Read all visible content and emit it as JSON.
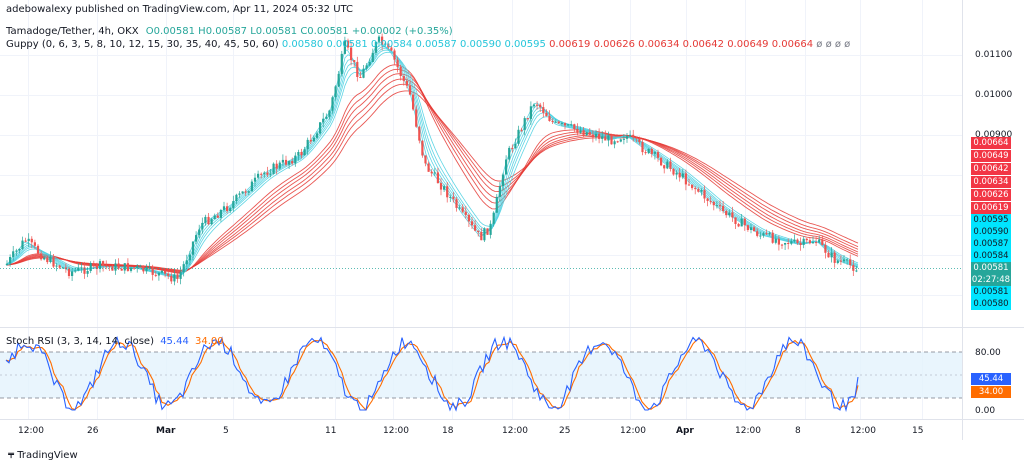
{
  "publisher_line": "adebowalexy published on TradingView.com, Apr 11, 2024 05:32 UTC",
  "legend": {
    "symbol": "Tamadoge/Tether, 4h, OKX",
    "ohlc": "O0.00581 H0.00587 L0.00581 C0.00581 +0.00002 (+0.35%)",
    "guppy_title": "Guppy (0, 6, 3, 5, 8, 10, 12, 15, 30, 35, 40, 45, 50, 60)",
    "guppy_cyan": [
      "0.00580",
      "0.00581",
      "0.00584",
      "0.00587",
      "0.00590",
      "0.00595"
    ],
    "guppy_red": [
      "0.00619",
      "0.00626",
      "0.00634",
      "0.00642",
      "0.00649",
      "0.00664"
    ],
    "guppy_empty": "ø ø ø ø",
    "stoch_title": "Stoch RSI (3, 3, 14, 14, close)",
    "stoch_k": "45.44",
    "stoch_d": "34.00"
  },
  "colors": {
    "up": "#26a69a",
    "down": "#ef5350",
    "guppy_red": "#e53935",
    "guppy_cyan": "#4dd0e1",
    "stoch_k": "#2962ff",
    "stoch_d": "#ff6d00",
    "band": "#e3f2fd",
    "current": "#26a69a"
  },
  "price_axis": {
    "ticks": [
      "0.01100",
      "0.01000",
      "0.00900"
    ],
    "red_labels": [
      "0.00664",
      "0.00649",
      "0.00642",
      "0.00634",
      "0.00626",
      "0.00619"
    ],
    "cyan_labels": [
      "0.00595",
      "0.00590",
      "0.00587",
      "0.00584"
    ],
    "current_price": "0.00581",
    "countdown": "02:27:48",
    "cyan_bottom_labels": [
      "0.00581",
      "0.00580"
    ]
  },
  "stoch_axis": {
    "ticks": [
      "80.00",
      "0.00"
    ]
  },
  "time_axis": [
    "12:00",
    "26",
    "Mar",
    "5",
    "11",
    "12:00",
    "18",
    "12:00",
    "25",
    "12:00",
    "Apr",
    "12:00",
    "8",
    "12:00",
    "15"
  ],
  "brand": "TradingView"
}
